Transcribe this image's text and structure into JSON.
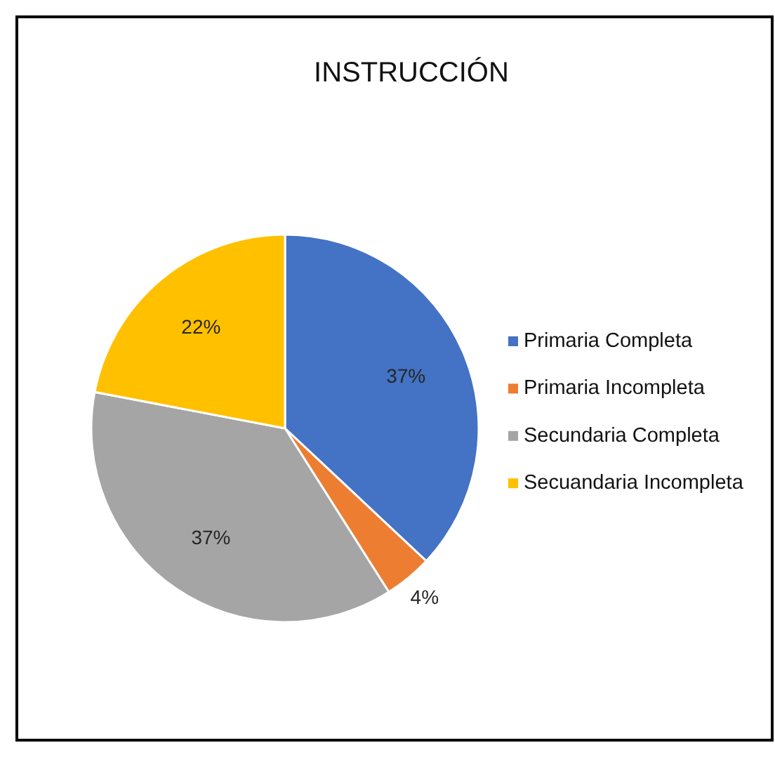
{
  "chart_data": {
    "type": "pie",
    "title": "INSTRUCCIÓN",
    "categories": [
      "Primaria Completa",
      "Primaria Incompleta",
      "Secundaria Completa",
      "Secuandaria Incompleta"
    ],
    "values": [
      37,
      4,
      37,
      22
    ],
    "colors": [
      "#4472c4",
      "#ed7d31",
      "#a5a5a5",
      "#ffc000"
    ],
    "value_labels": [
      "37%",
      "4%",
      "37%",
      "22%"
    ],
    "legend": "right"
  }
}
